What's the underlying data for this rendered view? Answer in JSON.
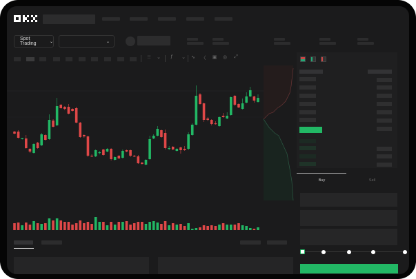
{
  "brand": {
    "logo": "OKX"
  },
  "header": {
    "nav_items": 4
  },
  "controls": {
    "market_select": "Spot Trading",
    "market_chevron": "chevron-down-icon",
    "pair_chevron": "chevron-down-icon"
  },
  "chart_toolbar": {
    "icons": [
      "candles-icon",
      "chevron-down-icon",
      "indicator-icon",
      "chevron-down-icon",
      "line-icon",
      "ruler-icon",
      "camera-icon",
      "settings-icon",
      "expand-icon"
    ]
  },
  "colors": {
    "up": "#22b865",
    "down": "#e04848",
    "background": "#1b1b1c",
    "accent": "#22b865"
  },
  "chart_data": {
    "type": "candlestick",
    "fields": [
      "open",
      "high",
      "low",
      "close"
    ],
    "candles": [
      [
        68,
        69,
        64,
        65
      ],
      [
        68,
        70,
        58,
        59
      ],
      [
        57,
        59,
        56.5,
        58.3
      ],
      [
        58,
        63,
        43,
        44
      ],
      [
        43,
        44,
        37,
        39
      ],
      [
        37,
        51,
        36,
        50
      ],
      [
        52,
        53,
        43,
        44
      ],
      [
        48,
        66,
        47,
        64
      ],
      [
        63,
        64,
        55,
        56
      ],
      [
        57,
        93,
        56,
        85
      ],
      [
        84,
        86,
        74,
        75
      ],
      [
        77,
        117,
        76,
        105
      ],
      [
        107,
        108,
        101,
        102
      ],
      [
        104,
        105,
        99,
        101
      ],
      [
        104,
        108,
        93,
        94
      ],
      [
        101,
        102,
        97,
        98
      ],
      [
        102,
        104,
        80,
        81
      ],
      [
        81,
        82,
        59,
        60
      ],
      [
        63,
        64,
        59,
        61
      ],
      [
        61,
        62,
        31,
        33
      ],
      [
        33,
        35,
        31,
        32
      ],
      [
        32,
        42,
        31,
        41
      ],
      [
        37,
        40,
        35,
        38
      ],
      [
        42,
        43,
        33,
        34
      ],
      [
        39,
        44,
        38,
        43
      ],
      [
        43,
        44,
        26,
        28
      ],
      [
        27,
        32,
        26,
        31
      ],
      [
        33,
        34,
        28,
        29
      ],
      [
        30,
        42,
        29,
        40
      ],
      [
        41,
        42,
        38,
        39
      ],
      [
        41,
        42,
        31,
        33
      ],
      [
        33,
        34,
        31,
        32
      ],
      [
        32,
        34,
        21,
        22
      ],
      [
        23,
        24,
        20,
        21
      ],
      [
        20,
        28,
        19,
        27
      ],
      [
        28,
        62,
        27,
        57
      ],
      [
        58,
        64,
        57,
        62
      ],
      [
        62,
        76,
        61,
        72
      ],
      [
        70,
        71,
        59,
        60
      ],
      [
        66,
        71,
        42,
        44
      ],
      [
        43,
        47,
        41,
        44
      ],
      [
        46,
        47,
        41,
        42
      ],
      [
        40,
        44,
        39,
        43
      ],
      [
        45,
        46,
        36,
        41
      ],
      [
        43,
        47,
        40,
        41
      ],
      [
        43,
        67,
        41,
        64
      ],
      [
        63,
        80,
        62,
        78
      ],
      [
        78,
        135,
        77,
        120
      ],
      [
        122,
        124,
        107,
        108
      ],
      [
        109,
        110,
        82,
        85
      ],
      [
        87,
        89,
        83,
        85
      ],
      [
        85,
        86,
        77,
        79
      ],
      [
        80,
        83,
        78,
        79
      ],
      [
        76,
        90,
        75,
        89
      ],
      [
        91,
        95,
        88,
        89
      ],
      [
        87,
        96,
        86,
        91
      ],
      [
        92,
        119,
        91,
        118
      ],
      [
        120,
        121,
        105,
        107
      ],
      [
        108,
        109,
        102,
        103
      ],
      [
        101,
        116,
        100,
        109
      ],
      [
        110,
        125,
        109,
        119
      ],
      [
        119,
        133,
        118,
        128
      ],
      [
        119,
        120,
        110,
        113
      ],
      [
        111,
        122,
        110,
        117
      ]
    ],
    "volume": [
      10,
      11,
      7,
      11,
      8,
      13,
      10,
      9,
      10,
      17,
      14,
      17,
      14,
      12,
      12,
      8,
      10,
      14,
      10,
      12,
      9,
      19,
      12,
      12,
      7,
      12,
      8,
      12,
      12,
      13,
      8,
      10,
      12,
      12,
      9,
      12,
      13,
      11,
      9,
      13,
      7,
      10,
      8,
      9,
      6,
      10,
      2,
      3,
      4,
      7,
      6,
      7,
      6,
      8,
      10,
      8,
      8,
      8,
      10,
      7,
      6,
      3,
      2,
      4
    ],
    "grid": false,
    "axes": "hidden"
  },
  "order_book": {
    "header_icons": [
      "book-both-icon",
      "book-bids-icon",
      "book-asks-icon"
    ]
  },
  "trade_panel": {
    "tabs": [
      "Buy",
      "Sell"
    ],
    "active_tab": "Buy",
    "slider_percent": 0,
    "slider_marks": 5
  }
}
